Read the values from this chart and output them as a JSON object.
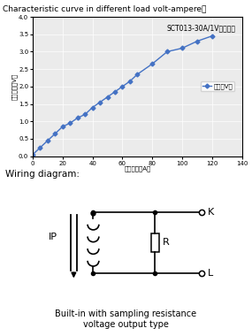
{
  "title_text": "Characteristic curve in different load volt-ampere：",
  "chart_title": "SCT013-30A/1V特性曲线",
  "ylabel": "输出电压（V）",
  "xlabel": "输入电流（A）",
  "legend_label": "输出（V）",
  "xlim": [
    0,
    140
  ],
  "ylim": [
    0,
    4
  ],
  "xticks": [
    0,
    20,
    40,
    60,
    80,
    100,
    120,
    140
  ],
  "yticks": [
    0,
    0.5,
    1,
    1.5,
    2,
    2.5,
    3,
    3.5,
    4
  ],
  "x_data": [
    0,
    5,
    10,
    15,
    20,
    25,
    30,
    35,
    40,
    45,
    50,
    55,
    60,
    65,
    70,
    80,
    90,
    100,
    110,
    120
  ],
  "y_data": [
    0.05,
    0.25,
    0.45,
    0.65,
    0.85,
    0.95,
    1.1,
    1.2,
    1.4,
    1.55,
    1.7,
    1.85,
    2.0,
    2.15,
    2.35,
    2.65,
    3.0,
    3.1,
    3.3,
    3.45
  ],
  "line_color": "#4472c4",
  "marker": "D",
  "marker_size": 2.5,
  "bg_color": "#ffffff",
  "chart_bg": "#ebebeb",
  "wiring_title": "Wiring diagram:",
  "wiring_caption1": "Built-in with sampling resistance",
  "wiring_caption2": "voltage output type"
}
